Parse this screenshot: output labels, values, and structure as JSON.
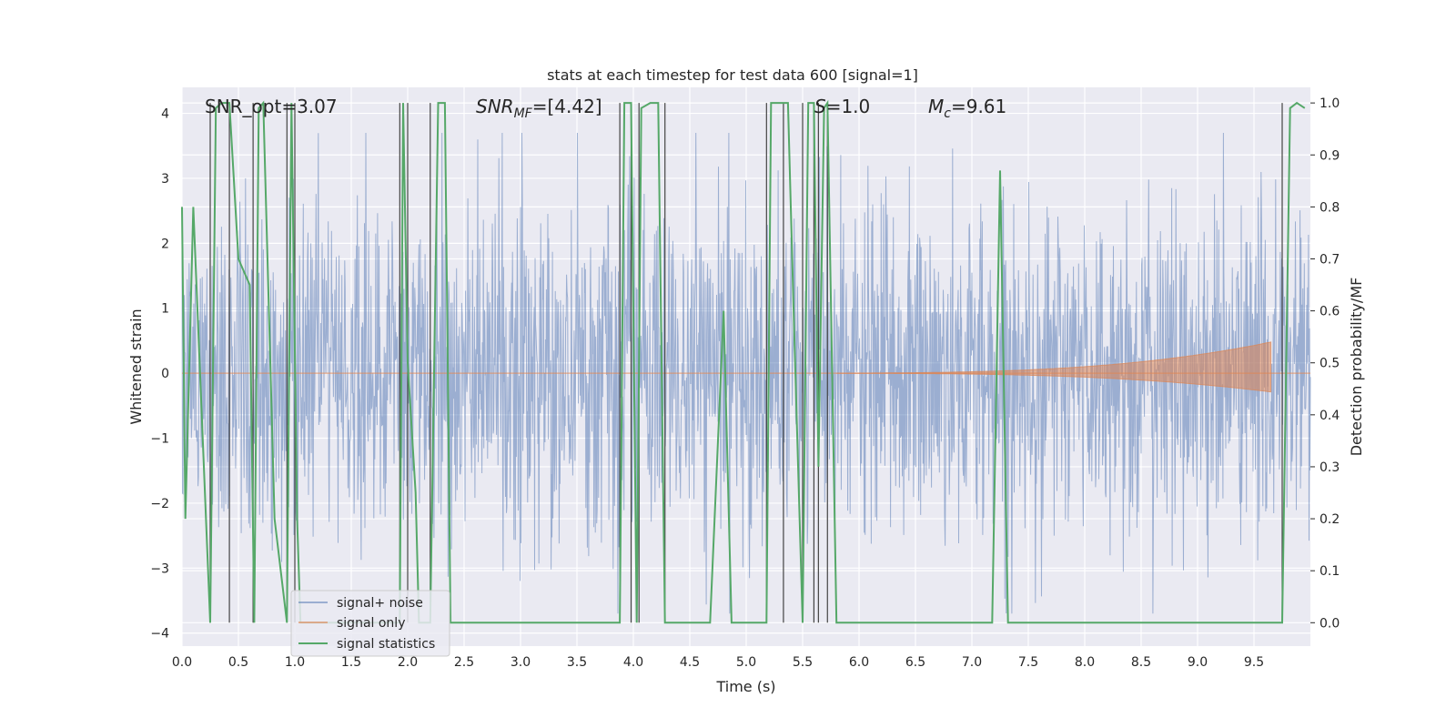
{
  "chart_data": {
    "type": "line",
    "title": "stats at each timestep for test data 600 [signal=1]",
    "xlabel": "Time (s)",
    "ylabel_left": "Whitened strain",
    "ylabel_right": "Detection probability/MF",
    "xlim": [
      0.0,
      10.0
    ],
    "ylim_left": [
      -4.2,
      4.4
    ],
    "ylim_right": [
      -0.045,
      1.03
    ],
    "grid": true,
    "legend_position": "lower-left",
    "x_ticks": [
      "0.0",
      "0.5",
      "1.0",
      "1.5",
      "2.0",
      "2.5",
      "3.0",
      "3.5",
      "4.0",
      "4.5",
      "5.0",
      "5.5",
      "6.0",
      "6.5",
      "7.0",
      "7.5",
      "8.0",
      "8.5",
      "9.0",
      "9.5"
    ],
    "y_left_ticks": [
      "4",
      "3",
      "2",
      "1",
      "0",
      "−1",
      "−2",
      "−3",
      "−4"
    ],
    "y_right_ticks": [
      "1.0",
      "0.9",
      "0.8",
      "0.7",
      "0.6",
      "0.5",
      "0.4",
      "0.3",
      "0.2",
      "0.1",
      "0.0"
    ],
    "annotations": {
      "snr_opt": "SNR_opt=3.07",
      "snr_mf_name": "SNR",
      "snr_mf_sub": "MF",
      "snr_mf_value": "=[4.42]",
      "s_name": "S",
      "s_value": "=1.0",
      "mc_name": "M",
      "mc_sub": "c",
      "mc_value": "=9.61"
    },
    "series": [
      {
        "name": "signal+ noise",
        "color": "#4c72b0",
        "axis": "left",
        "description_values": "whitened strain noise, approx ±2 std with peaks to ±3.7"
      },
      {
        "name": "signal only",
        "color": "#dd8452",
        "axis": "left",
        "chirp": {
          "start_t": 5.8,
          "merger_t": 9.65,
          "peak_amplitude": 0.45
        }
      },
      {
        "name": "signal statistics",
        "color": "#55a868",
        "axis": "right",
        "points": [
          [
            0.0,
            0.8
          ],
          [
            0.03,
            0.2
          ],
          [
            0.1,
            0.8
          ],
          [
            0.25,
            0.0
          ],
          [
            0.3,
            0.99
          ],
          [
            0.35,
            1.0
          ],
          [
            0.42,
            1.0
          ],
          [
            0.5,
            0.7
          ],
          [
            0.6,
            0.65
          ],
          [
            0.64,
            0.0
          ],
          [
            0.68,
            0.99
          ],
          [
            0.72,
            1.0
          ],
          [
            0.82,
            0.2
          ],
          [
            0.93,
            0.0
          ],
          [
            0.97,
            1.0
          ],
          [
            1.02,
            0.2
          ],
          [
            1.05,
            0.0
          ],
          [
            1.93,
            0.0
          ],
          [
            1.96,
            1.0
          ],
          [
            2.0,
            0.5
          ],
          [
            2.07,
            0.25
          ],
          [
            2.1,
            0.0
          ],
          [
            2.2,
            0.0
          ],
          [
            2.27,
            1.0
          ],
          [
            2.33,
            1.0
          ],
          [
            2.38,
            0.0
          ],
          [
            3.88,
            0.0
          ],
          [
            3.92,
            1.0
          ],
          [
            3.98,
            1.0
          ],
          [
            4.03,
            0.0
          ],
          [
            4.07,
            0.99
          ],
          [
            4.15,
            1.0
          ],
          [
            4.22,
            1.0
          ],
          [
            4.28,
            0.0
          ],
          [
            4.68,
            0.0
          ],
          [
            4.8,
            0.6
          ],
          [
            4.87,
            0.0
          ],
          [
            5.18,
            0.0
          ],
          [
            5.22,
            1.0
          ],
          [
            5.37,
            1.0
          ],
          [
            5.42,
            0.6
          ],
          [
            5.5,
            0.0
          ],
          [
            5.55,
            1.0
          ],
          [
            5.6,
            1.0
          ],
          [
            5.64,
            0.3
          ],
          [
            5.69,
            0.99
          ],
          [
            5.72,
            1.0
          ],
          [
            5.8,
            0.0
          ],
          [
            7.18,
            0.0
          ],
          [
            7.25,
            0.87
          ],
          [
            7.32,
            0.0
          ],
          [
            9.75,
            0.0
          ],
          [
            9.82,
            0.99
          ],
          [
            9.88,
            1.0
          ],
          [
            9.95,
            0.99
          ]
        ]
      }
    ],
    "threshold_crossings": [
      0.25,
      0.42,
      0.63,
      0.93,
      1.0,
      1.93,
      2.0,
      2.2,
      3.88,
      3.98,
      4.05,
      4.28,
      5.18,
      5.33,
      5.5,
      5.6,
      5.64,
      5.72,
      9.75
    ]
  }
}
